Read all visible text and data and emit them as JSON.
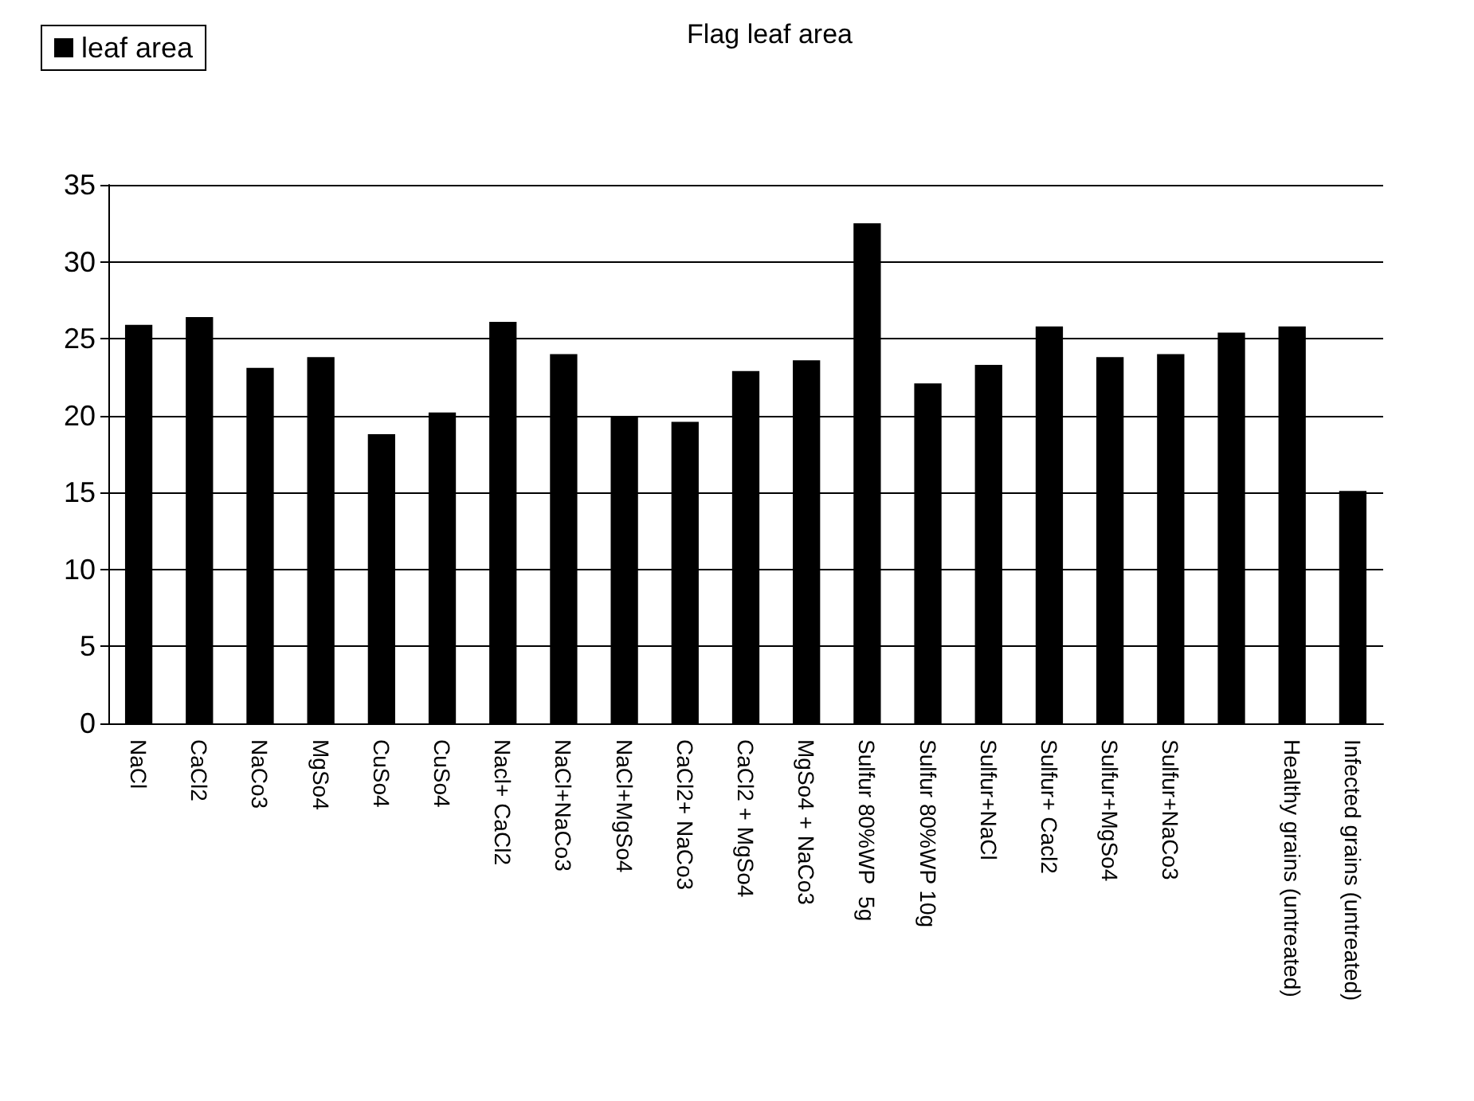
{
  "chart_data": {
    "type": "bar",
    "title": "Flag leaf area",
    "categories": [
      "NaCl",
      "CaCl2",
      "NaCo3",
      "MgSo4",
      "CuSo4",
      "CuSo4",
      "Nacl+ CaCl2",
      "NaCl+NaCo3",
      "NaCl+MgSo4",
      "CaCl2+ NaCo3",
      "CaCl2 + MgSo4",
      "MgSo4 + NaCo3",
      "Sulfur 80%WP  5g",
      "Sulfur 80%WP 10g",
      "Sulfur+NaCl",
      "Sulfur+ Cacl2",
      "Sulfur+MgSo4",
      "Sulfur+NaCo3",
      null,
      "Healthy grains (untreated)",
      "Infected grains (untreated)"
    ],
    "series": [
      {
        "name": "leaf area",
        "color": "#000000",
        "values": [
          25.9,
          26.4,
          23.1,
          23.8,
          18.8,
          20.2,
          26.1,
          24.0,
          19.9,
          19.6,
          22.9,
          23.6,
          32.5,
          22.1,
          23.3,
          25.8,
          23.8,
          24.0,
          25.4,
          25.8,
          15.1
        ]
      }
    ],
    "ylim": [
      0,
      35
    ],
    "yticks": [
      0,
      5,
      10,
      15,
      20,
      25,
      30,
      35
    ],
    "grid": "y",
    "legend": "top left"
  }
}
